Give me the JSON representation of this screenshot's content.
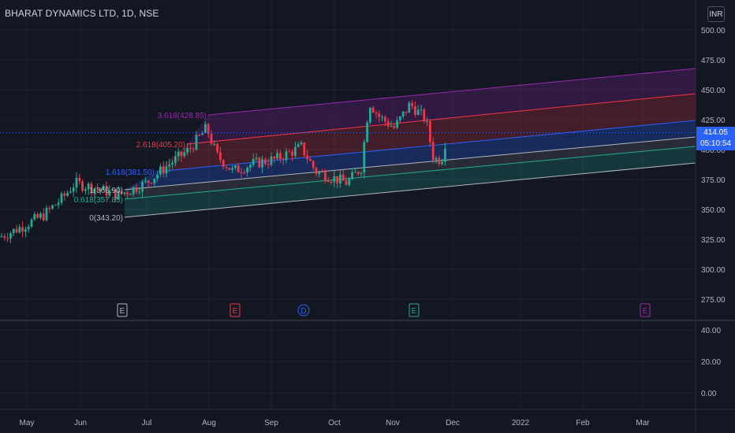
{
  "header": {
    "title": "BHARAT DYNAMICS LTD, 1D, NSE",
    "currency": "INR"
  },
  "price_tag": {
    "price": "414.05",
    "countdown": "05:10:54"
  },
  "price_axis": {
    "ticks": [
      "500.00",
      "475.00",
      "450.00",
      "425.00",
      "400.00",
      "375.00",
      "350.00",
      "325.00",
      "300.00",
      "275.00"
    ]
  },
  "volume_axis": {
    "ticks": [
      "40.00",
      "20.00",
      "0.00"
    ]
  },
  "time_axis": {
    "ticks": [
      "May",
      "Jun",
      "Jul",
      "Aug",
      "Sep",
      "Oct",
      "Nov",
      "Dec",
      "2022",
      "Feb",
      "Mar"
    ]
  },
  "fib_levels": [
    {
      "label": "3.618(428.85)",
      "color": "#9c27b0"
    },
    {
      "label": "2.618(405.20)",
      "color": "#f23645"
    },
    {
      "label": "1.618(381.50)",
      "color": "#2962ff"
    },
    {
      "label": "1(366.90)",
      "color": "#b2b5be"
    },
    {
      "label": "0.618(357.85)",
      "color": "#22ab94"
    },
    {
      "label": "0(343.20)",
      "color": "#b2b5be"
    }
  ],
  "event_markers": [
    {
      "letter": "E",
      "color": "#b2b5be"
    },
    {
      "letter": "E",
      "color": "#f23645"
    },
    {
      "letter": "D",
      "color": "#2962ff"
    },
    {
      "letter": "E",
      "color": "#22ab94"
    },
    {
      "letter": "E",
      "color": "#9c27b0"
    }
  ],
  "colors": {
    "background": "#131722",
    "up": "#22ab94",
    "down": "#f23645",
    "grid": "#1e222d",
    "current_price": "#2962ff"
  },
  "chart_data": {
    "type": "candlestick",
    "title": "BHARAT DYNAMICS LTD, 1D, NSE",
    "y_range": [
      265,
      510
    ],
    "price_series": [
      {
        "date": "May",
        "price": 327
      },
      {
        "date": "May",
        "price": 333
      },
      {
        "date": "May",
        "price": 342
      },
      {
        "date": "May",
        "price": 348
      },
      {
        "date": "May",
        "price": 355
      },
      {
        "date": "May",
        "price": 360
      },
      {
        "date": "Jun",
        "price": 372
      },
      {
        "date": "Jun",
        "price": 370
      },
      {
        "date": "Jun",
        "price": 367
      },
      {
        "date": "Jun",
        "price": 362
      },
      {
        "date": "Jul",
        "price": 365
      },
      {
        "date": "Jul",
        "price": 375
      },
      {
        "date": "Jul",
        "price": 384
      },
      {
        "date": "Aug",
        "price": 410
      },
      {
        "date": "Aug",
        "price": 395
      },
      {
        "date": "Aug",
        "price": 382
      },
      {
        "date": "Aug",
        "price": 384
      },
      {
        "date": "Sep",
        "price": 388
      },
      {
        "date": "Sep",
        "price": 394
      },
      {
        "date": "Sep",
        "price": 382
      },
      {
        "date": "Oct",
        "price": 378
      },
      {
        "date": "Oct",
        "price": 374
      },
      {
        "date": "Oct",
        "price": 390
      },
      {
        "date": "Oct",
        "price": 440
      },
      {
        "date": "Nov",
        "price": 430
      },
      {
        "date": "Nov",
        "price": 425
      },
      {
        "date": "Nov",
        "price": 438
      },
      {
        "date": "Nov",
        "price": 420
      },
      {
        "date": "Nov",
        "price": 392
      },
      {
        "date": "Nov",
        "price": 414.05
      }
    ],
    "last_price": 414.05
  }
}
